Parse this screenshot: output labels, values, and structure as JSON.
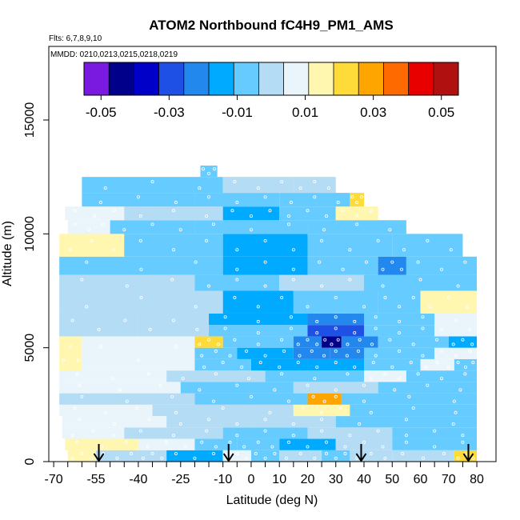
{
  "chart_data": {
    "type": "heatmap",
    "title": "ATOM2 Northbound fC4H9_PM1_AMS",
    "flights_label": "Flts: 6,7,8,9,10",
    "dates_label": "MMDD: 0210,0213,0215,0218,0219",
    "xlabel": "Latitude (deg N)",
    "ylabel": "Altitude (m)",
    "xlim": [
      -70,
      84
    ],
    "ylim": [
      0,
      17500
    ],
    "x_ticks": [
      -70,
      -55,
      -40,
      -25,
      -10,
      0,
      10,
      20,
      30,
      40,
      50,
      60,
      70,
      80
    ],
    "x_minor_ticks": [
      -65,
      -60,
      -50,
      -45,
      -35,
      -30,
      -20,
      -15,
      -5,
      5,
      15,
      25,
      35,
      45,
      55,
      65,
      75
    ],
    "y_ticks": [
      0,
      5000,
      10000,
      15000
    ],
    "x_tick_labels": [
      "-70",
      "-55",
      "-40",
      "-25",
      "-10",
      "0",
      "10",
      "20",
      "30",
      "40",
      "50",
      "60",
      "70",
      "80"
    ],
    "y_tick_labels": [
      "0",
      "5000",
      "10000",
      "15000"
    ],
    "colorbar": {
      "range": [
        -0.055,
        0.055
      ],
      "ticks": [
        -0.05,
        -0.03,
        -0.01,
        0.01,
        0.03,
        0.05
      ],
      "tick_labels": [
        "-0.05",
        "-0.03",
        "-0.01",
        "0.01",
        "0.03",
        "0.05"
      ],
      "colors": [
        "#7a19e0",
        "#00008b",
        "#0000c8",
        "#1e50e6",
        "#2288ee",
        "#00aaff",
        "#66ccff",
        "#b5dcf5",
        "#eaf5fb",
        "#fff6b0",
        "#ffdb3a",
        "#ffa500",
        "#ff6a00",
        "#e80000",
        "#b01010"
      ]
    },
    "profile_arrows_latitude": [
      -54,
      -8,
      39,
      77
    ],
    "cells": [
      {
        "lat": [
          -65,
          -55
        ],
        "alt": [
          0,
          500
        ],
        "v": 0.012
      },
      {
        "lat": [
          -55,
          -40
        ],
        "alt": [
          0,
          500
        ],
        "v": 0.003
      },
      {
        "lat": [
          -40,
          -30
        ],
        "alt": [
          0,
          500
        ],
        "v": 0.002
      },
      {
        "lat": [
          -30,
          -10
        ],
        "alt": [
          0,
          500
        ],
        "v": -0.011
      },
      {
        "lat": [
          -10,
          0
        ],
        "alt": [
          0,
          500
        ],
        "v": 0.004
      },
      {
        "lat": [
          0,
          10
        ],
        "alt": [
          0,
          500
        ],
        "v": -0.006
      },
      {
        "lat": [
          10,
          25
        ],
        "alt": [
          0,
          500
        ],
        "v": -0.003
      },
      {
        "lat": [
          25,
          35
        ],
        "alt": [
          0,
          500
        ],
        "v": -0.004
      },
      {
        "lat": [
          35,
          50
        ],
        "alt": [
          0,
          500
        ],
        "v": 0.003
      },
      {
        "lat": [
          50,
          72
        ],
        "alt": [
          0,
          500
        ],
        "v": 0.001
      },
      {
        "lat": [
          72,
          80
        ],
        "alt": [
          0,
          500
        ],
        "v": 0.022
      },
      {
        "lat": [
          -66,
          -40
        ],
        "alt": [
          500,
          1000
        ],
        "v": 0.012
      },
      {
        "lat": [
          -40,
          -20
        ],
        "alt": [
          500,
          1000
        ],
        "v": 0.004
      },
      {
        "lat": [
          -20,
          -5
        ],
        "alt": [
          500,
          1000
        ],
        "v": -0.004
      },
      {
        "lat": [
          -5,
          10
        ],
        "alt": [
          500,
          1000
        ],
        "v": -0.006
      },
      {
        "lat": [
          10,
          30
        ],
        "alt": [
          500,
          1000
        ],
        "v": -0.015
      },
      {
        "lat": [
          30,
          50
        ],
        "alt": [
          500,
          1000
        ],
        "v": 0.002
      },
      {
        "lat": [
          50,
          80
        ],
        "alt": [
          500,
          1000
        ],
        "v": -0.004
      },
      {
        "lat": [
          -67,
          -45
        ],
        "alt": [
          1000,
          1500
        ],
        "v": 0.008
      },
      {
        "lat": [
          -45,
          -10
        ],
        "alt": [
          1000,
          1500
        ],
        "v": 0.003
      },
      {
        "lat": [
          -10,
          20
        ],
        "alt": [
          1000,
          1500
        ],
        "v": -0.007
      },
      {
        "lat": [
          20,
          50
        ],
        "alt": [
          1000,
          1500
        ],
        "v": -0.003
      },
      {
        "lat": [
          50,
          80
        ],
        "alt": [
          1000,
          1500
        ],
        "v": -0.005
      },
      {
        "lat": [
          -67,
          -30
        ],
        "alt": [
          1500,
          2000
        ],
        "v": 0.005
      },
      {
        "lat": [
          -30,
          0
        ],
        "alt": [
          1500,
          2000
        ],
        "v": -0.002
      },
      {
        "lat": [
          0,
          30
        ],
        "alt": [
          1500,
          2000
        ],
        "v": 0.002
      },
      {
        "lat": [
          30,
          80
        ],
        "alt": [
          1500,
          2000
        ],
        "v": -0.006
      },
      {
        "lat": [
          -68,
          -35
        ],
        "alt": [
          2000,
          2500
        ],
        "v": 0.004
      },
      {
        "lat": [
          -35,
          15
        ],
        "alt": [
          2000,
          2500
        ],
        "v": -0.003
      },
      {
        "lat": [
          15,
          35
        ],
        "alt": [
          2000,
          2500
        ],
        "v": 0.012
      },
      {
        "lat": [
          35,
          80
        ],
        "alt": [
          2000,
          2500
        ],
        "v": -0.004
      },
      {
        "lat": [
          -68,
          -20
        ],
        "alt": [
          2500,
          3000
        ],
        "v": 0.003
      },
      {
        "lat": [
          -20,
          20
        ],
        "alt": [
          2500,
          3000
        ],
        "v": -0.004
      },
      {
        "lat": [
          20,
          32
        ],
        "alt": [
          2500,
          3000
        ],
        "v": 0.026
      },
      {
        "lat": [
          32,
          80
        ],
        "alt": [
          2500,
          3000
        ],
        "v": -0.005
      },
      {
        "lat": [
          -68,
          -25
        ],
        "alt": [
          3000,
          3500
        ],
        "v": 0.004
      },
      {
        "lat": [
          -25,
          15
        ],
        "alt": [
          3000,
          3500
        ],
        "v": -0.005
      },
      {
        "lat": [
          15,
          45
        ],
        "alt": [
          3000,
          3500
        ],
        "v": 0.003
      },
      {
        "lat": [
          45,
          80
        ],
        "alt": [
          3000,
          3500
        ],
        "v": -0.004
      },
      {
        "lat": [
          -68,
          -30
        ],
        "alt": [
          3500,
          4000
        ],
        "v": 0.005
      },
      {
        "lat": [
          -30,
          5
        ],
        "alt": [
          3500,
          4000
        ],
        "v": -0.003
      },
      {
        "lat": [
          5,
          40
        ],
        "alt": [
          3500,
          4000
        ],
        "v": -0.008
      },
      {
        "lat": [
          40,
          55
        ],
        "alt": [
          3500,
          4000
        ],
        "v": 0.008
      },
      {
        "lat": [
          55,
          80
        ],
        "alt": [
          3500,
          4000
        ],
        "v": -0.005
      },
      {
        "lat": [
          -68,
          -60
        ],
        "alt": [
          4000,
          5500
        ],
        "v": 0.015
      },
      {
        "lat": [
          -60,
          -20
        ],
        "alt": [
          4000,
          5500
        ],
        "v": 0.004
      },
      {
        "lat": [
          -20,
          0
        ],
        "alt": [
          4000,
          4500
        ],
        "v": -0.006
      },
      {
        "lat": [
          0,
          20
        ],
        "alt": [
          4000,
          4500
        ],
        "v": -0.012
      },
      {
        "lat": [
          20,
          40
        ],
        "alt": [
          4000,
          4500
        ],
        "v": -0.018
      },
      {
        "lat": [
          40,
          60
        ],
        "alt": [
          4000,
          4500
        ],
        "v": -0.007
      },
      {
        "lat": [
          60,
          72
        ],
        "alt": [
          4000,
          4500
        ],
        "v": 0.006
      },
      {
        "lat": [
          72,
          80
        ],
        "alt": [
          4000,
          4500
        ],
        "v": -0.008
      },
      {
        "lat": [
          -20,
          -5
        ],
        "alt": [
          4500,
          5000
        ],
        "v": -0.008
      },
      {
        "lat": [
          -5,
          15
        ],
        "alt": [
          4500,
          5000
        ],
        "v": -0.012
      },
      {
        "lat": [
          15,
          28
        ],
        "alt": [
          4500,
          5000
        ],
        "v": -0.022
      },
      {
        "lat": [
          28,
          40
        ],
        "alt": [
          4500,
          5000
        ],
        "v": -0.02
      },
      {
        "lat": [
          40,
          65
        ],
        "alt": [
          4500,
          5000
        ],
        "v": -0.006
      },
      {
        "lat": [
          65,
          80
        ],
        "alt": [
          4500,
          5000
        ],
        "v": 0.004
      },
      {
        "lat": [
          -20,
          -10
        ],
        "alt": [
          5000,
          5500
        ],
        "v": 0.025
      },
      {
        "lat": [
          -10,
          15
        ],
        "alt": [
          5000,
          5500
        ],
        "v": -0.01
      },
      {
        "lat": [
          15,
          25
        ],
        "alt": [
          5000,
          5500
        ],
        "v": -0.022
      },
      {
        "lat": [
          25,
          32
        ],
        "alt": [
          5000,
          5500
        ],
        "v": -0.042
      },
      {
        "lat": [
          32,
          45
        ],
        "alt": [
          5000,
          5500
        ],
        "v": -0.02
      },
      {
        "lat": [
          45,
          70
        ],
        "alt": [
          5000,
          5500
        ],
        "v": -0.006
      },
      {
        "lat": [
          70,
          80
        ],
        "alt": [
          5000,
          5500
        ],
        "v": -0.015
      },
      {
        "lat": [
          -68,
          -40
        ],
        "alt": [
          5500,
          6500
        ],
        "v": 0.002
      },
      {
        "lat": [
          -40,
          -15
        ],
        "alt": [
          5500,
          6500
        ],
        "v": 0.003
      },
      {
        "lat": [
          -15,
          20
        ],
        "alt": [
          5500,
          6000
        ],
        "v": -0.007
      },
      {
        "lat": [
          20,
          40
        ],
        "alt": [
          5500,
          6000
        ],
        "v": -0.03
      },
      {
        "lat": [
          40,
          65
        ],
        "alt": [
          5500,
          6000
        ],
        "v": -0.008
      },
      {
        "lat": [
          65,
          80
        ],
        "alt": [
          5500,
          6500
        ],
        "v": 0.008
      },
      {
        "lat": [
          -15,
          20
        ],
        "alt": [
          6000,
          6500
        ],
        "v": -0.012
      },
      {
        "lat": [
          20,
          40
        ],
        "alt": [
          6000,
          6500
        ],
        "v": -0.022
      },
      {
        "lat": [
          40,
          65
        ],
        "alt": [
          6000,
          6500
        ],
        "v": -0.006
      },
      {
        "lat": [
          -68,
          -10
        ],
        "alt": [
          6500,
          7500
        ],
        "v": -0.003
      },
      {
        "lat": [
          -10,
          15
        ],
        "alt": [
          6500,
          7500
        ],
        "v": -0.012
      },
      {
        "lat": [
          15,
          45
        ],
        "alt": [
          6500,
          7500
        ],
        "v": -0.008
      },
      {
        "lat": [
          45,
          60
        ],
        "alt": [
          6500,
          7500
        ],
        "v": -0.004
      },
      {
        "lat": [
          60,
          80
        ],
        "alt": [
          6500,
          7500
        ],
        "v": 0.015
      },
      {
        "lat": [
          -68,
          -20
        ],
        "alt": [
          7500,
          8200
        ],
        "v": -0.003
      },
      {
        "lat": [
          -20,
          10
        ],
        "alt": [
          7500,
          8200
        ],
        "v": -0.008
      },
      {
        "lat": [
          10,
          40
        ],
        "alt": [
          7500,
          8200
        ],
        "v": -0.002
      },
      {
        "lat": [
          40,
          80
        ],
        "alt": [
          7500,
          8200
        ],
        "v": -0.006
      },
      {
        "lat": [
          -68,
          -10
        ],
        "alt": [
          8200,
          9000
        ],
        "v": -0.005
      },
      {
        "lat": [
          -10,
          20
        ],
        "alt": [
          8200,
          9000
        ],
        "v": -0.012
      },
      {
        "lat": [
          20,
          45
        ],
        "alt": [
          8200,
          9000
        ],
        "v": -0.007
      },
      {
        "lat": [
          45,
          55
        ],
        "alt": [
          8200,
          9000
        ],
        "v": -0.02
      },
      {
        "lat": [
          55,
          80
        ],
        "alt": [
          8200,
          9000
        ],
        "v": -0.008
      },
      {
        "lat": [
          -68,
          -45
        ],
        "alt": [
          9000,
          10000
        ],
        "v": 0.012
      },
      {
        "lat": [
          -45,
          -10
        ],
        "alt": [
          9000,
          10000
        ],
        "v": -0.004
      },
      {
        "lat": [
          -10,
          20
        ],
        "alt": [
          9000,
          10000
        ],
        "v": -0.014
      },
      {
        "lat": [
          20,
          50
        ],
        "alt": [
          9000,
          10000
        ],
        "v": -0.01
      },
      {
        "lat": [
          50,
          75
        ],
        "alt": [
          9000,
          10000
        ],
        "v": -0.005
      },
      {
        "lat": [
          -65,
          -50
        ],
        "alt": [
          10000,
          10600
        ],
        "v": 0.01
      },
      {
        "lat": [
          -50,
          -20
        ],
        "alt": [
          10000,
          10600
        ],
        "v": -0.004
      },
      {
        "lat": [
          -20,
          20
        ],
        "alt": [
          10000,
          10600
        ],
        "v": -0.01
      },
      {
        "lat": [
          20,
          55
        ],
        "alt": [
          10000,
          10600
        ],
        "v": -0.006
      },
      {
        "lat": [
          -66,
          -45
        ],
        "alt": [
          10600,
          11200
        ],
        "v": 0.01
      },
      {
        "lat": [
          -45,
          -10
        ],
        "alt": [
          10600,
          11200
        ],
        "v": -0.003
      },
      {
        "lat": [
          -10,
          10
        ],
        "alt": [
          10600,
          11200
        ],
        "v": -0.015
      },
      {
        "lat": [
          10,
          30
        ],
        "alt": [
          10600,
          11200
        ],
        "v": -0.005
      },
      {
        "lat": [
          30,
          45
        ],
        "alt": [
          10600,
          11200
        ],
        "v": 0.012
      },
      {
        "lat": [
          -60,
          -20
        ],
        "alt": [
          11200,
          11800
        ],
        "v": -0.006
      },
      {
        "lat": [
          -20,
          10
        ],
        "alt": [
          11200,
          11800
        ],
        "v": -0.004
      },
      {
        "lat": [
          10,
          35
        ],
        "alt": [
          11200,
          11800
        ],
        "v": -0.006
      },
      {
        "lat": [
          35,
          40
        ],
        "alt": [
          11200,
          11800
        ],
        "v": 0.022
      },
      {
        "lat": [
          -60,
          -10
        ],
        "alt": [
          11800,
          12500
        ],
        "v": -0.005
      },
      {
        "lat": [
          -10,
          15
        ],
        "alt": [
          11800,
          12500
        ],
        "v": -0.003
      },
      {
        "lat": [
          15,
          30
        ],
        "alt": [
          11800,
          12500
        ],
        "v": 0.002
      },
      {
        "lat": [
          -18,
          -12
        ],
        "alt": [
          12500,
          13000
        ],
        "v": -0.006
      }
    ]
  }
}
